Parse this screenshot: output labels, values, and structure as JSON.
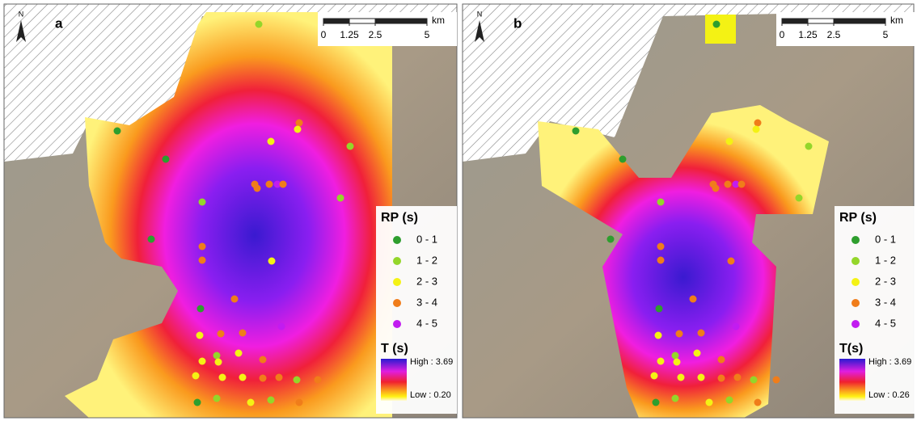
{
  "panels": [
    {
      "label": "a",
      "north": "N",
      "scale": {
        "ticks": [
          0,
          1.25,
          2.5,
          5
        ],
        "unit": "km"
      },
      "legend": {
        "title": "RP (s)",
        "classes": [
          {
            "label": "0 - 1",
            "color": "#2e9e2e"
          },
          {
            "label": "1 - 2",
            "color": "#94d62a"
          },
          {
            "label": "2 - 3",
            "color": "#f4f214"
          },
          {
            "label": "3 - 4",
            "color": "#f07d1a"
          },
          {
            "label": "4 - 5",
            "color": "#c21cf0"
          }
        ]
      },
      "ramp": {
        "title": "T (s)",
        "high": "High : 3.69",
        "low": "Low : 0.20"
      }
    },
    {
      "label": "b",
      "north": "N",
      "scale": {
        "ticks": [
          0,
          1.25,
          2.5,
          5
        ],
        "unit": "km"
      },
      "legend": {
        "title": "RP (s)",
        "classes": [
          {
            "label": "0 - 1",
            "color": "#2e9e2e"
          },
          {
            "label": "1 - 2",
            "color": "#94d62a"
          },
          {
            "label": "2 - 3",
            "color": "#f4f214"
          },
          {
            "label": "3 - 4",
            "color": "#f07d1a"
          },
          {
            "label": "4 - 5",
            "color": "#c21cf0"
          }
        ]
      },
      "ramp": {
        "title": "T(s)",
        "high": "High : 3.69",
        "low": "Low : 0.26"
      }
    }
  ]
}
